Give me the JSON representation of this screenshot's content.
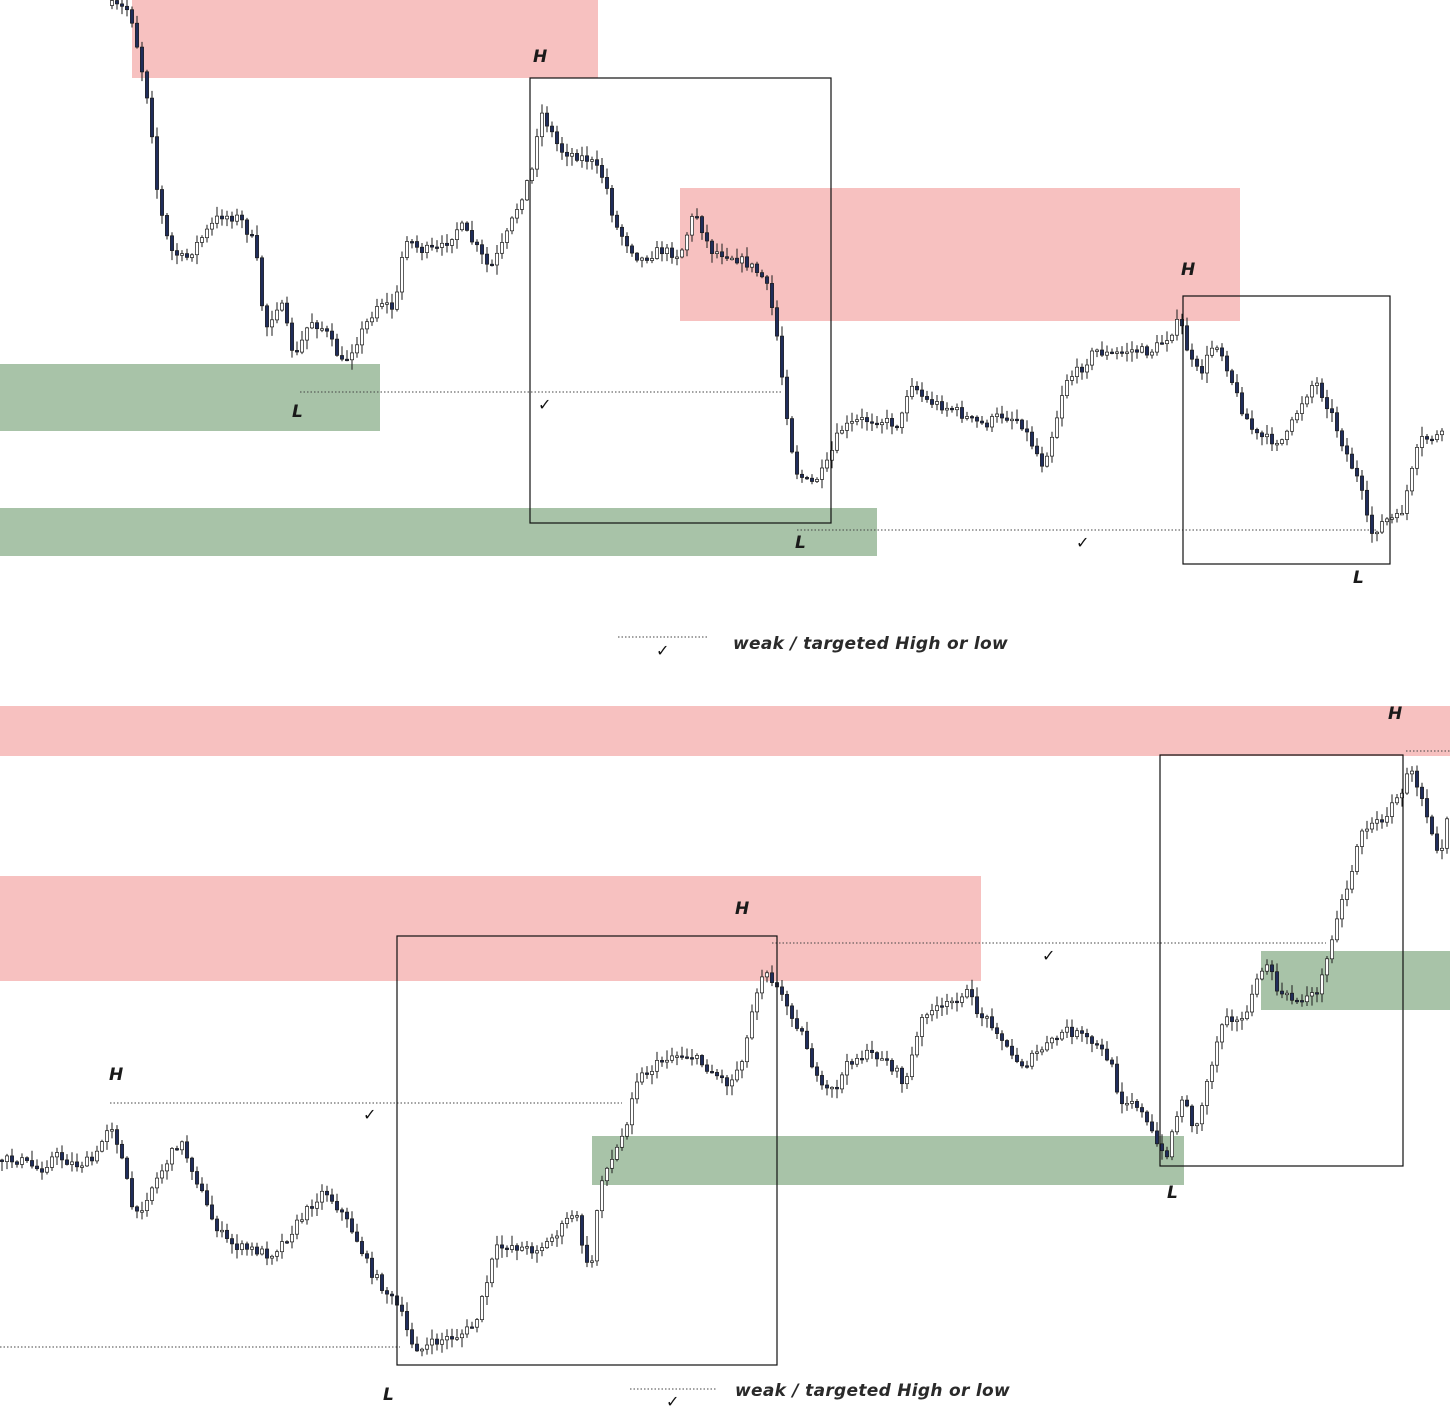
{
  "chart_data": [
    {
      "type": "candlestick",
      "panel": "top",
      "zones": [
        {
          "kind": "supply",
          "color": "#f7c1c0"
        },
        {
          "kind": "supply",
          "color": "#f7c1c0"
        },
        {
          "kind": "demand",
          "color": "#a8c3a8"
        },
        {
          "kind": "demand",
          "color": "#a8c3a8"
        }
      ],
      "markers": [
        {
          "label": "H",
          "type": "swing-high"
        },
        {
          "label": "L",
          "type": "swing-low"
        },
        {
          "label": "L",
          "type": "swing-low"
        },
        {
          "label": "H",
          "type": "swing-high"
        },
        {
          "label": "L",
          "type": "swing-low"
        }
      ],
      "checks": [
        "✓",
        "✓"
      ],
      "legend": {
        "text": "weak / targeted High or low",
        "check": "✓"
      }
    },
    {
      "type": "candlestick",
      "panel": "bottom",
      "zones": [
        {
          "kind": "supply",
          "color": "#f7c1c0"
        },
        {
          "kind": "supply",
          "color": "#f7c1c0"
        },
        {
          "kind": "demand",
          "color": "#a8c3a8"
        },
        {
          "kind": "demand",
          "color": "#a8c3a8"
        }
      ],
      "markers": [
        {
          "label": "H",
          "type": "swing-high"
        },
        {
          "label": "H",
          "type": "swing-high"
        },
        {
          "label": "L",
          "type": "swing-low"
        },
        {
          "label": "L",
          "type": "swing-low"
        },
        {
          "label": "H",
          "type": "swing-high"
        }
      ],
      "checks": [
        "✓",
        "✓"
      ],
      "legend": {
        "text": "weak / targeted High or low",
        "check": "✓"
      }
    }
  ],
  "colors": {
    "supply_zone": "#f7c1c0",
    "demand_zone": "#a8c3a8",
    "bull_candle": "#ffffff",
    "bear_candle": "#1f2d5c",
    "wick": "#1a1a1a"
  }
}
